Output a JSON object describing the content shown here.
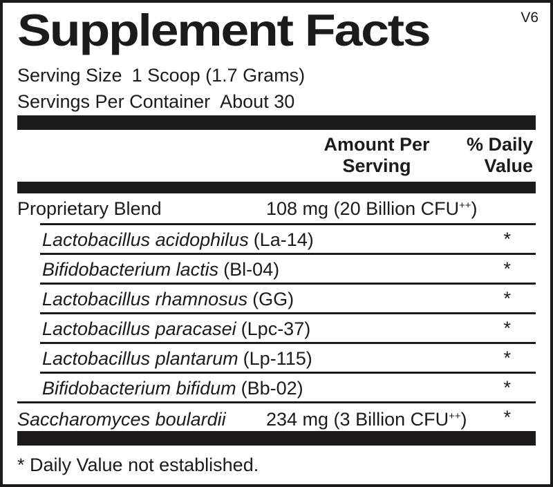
{
  "title": {
    "text": "Supplement Facts",
    "version": "V6"
  },
  "serving": {
    "size_label": "Serving Size",
    "size_value": "1 Scoop (1.7 Grams)",
    "per_container_label": "Servings Per Container",
    "per_container_value": "About 30"
  },
  "columns": {
    "amount_line1": "Amount Per",
    "amount_line2": "Serving",
    "dv_line1": "% Daily",
    "dv_line2": "Value"
  },
  "rows": {
    "proprietary": {
      "name": "Proprietary Blend",
      "amount_main": "108 mg (20 Billion CFU",
      "amount_sup": "++",
      "amount_close": ")"
    },
    "blend_items": [
      {
        "species": "Lactobacillus acidophilus",
        "strain": "(La-14)",
        "dv": "*"
      },
      {
        "species": "Bifidobacterium lactis",
        "strain": "(Bl-04)",
        "dv": "*"
      },
      {
        "species": "Lactobacillus rhamnosus",
        "strain": "(GG)",
        "dv": "*"
      },
      {
        "species": "Lactobacillus paracasei",
        "strain": "(Lpc-37)",
        "dv": "*"
      },
      {
        "species": "Lactobacillus plantarum",
        "strain": "(Lp-115)",
        "dv": "*"
      },
      {
        "species": "Bifidobacterium bifidum",
        "strain": "(Bb-02)",
        "dv": "*"
      }
    ],
    "saccharomyces": {
      "species": "Saccharomyces boulardii",
      "amount_main": "234 mg (3 Billion CFU",
      "amount_sup": "++",
      "amount_close": ")",
      "dv": "*"
    }
  },
  "footnote": "* Daily Value not established.",
  "colors": {
    "ink": "#1d1a1b",
    "background": "#ffffff"
  }
}
